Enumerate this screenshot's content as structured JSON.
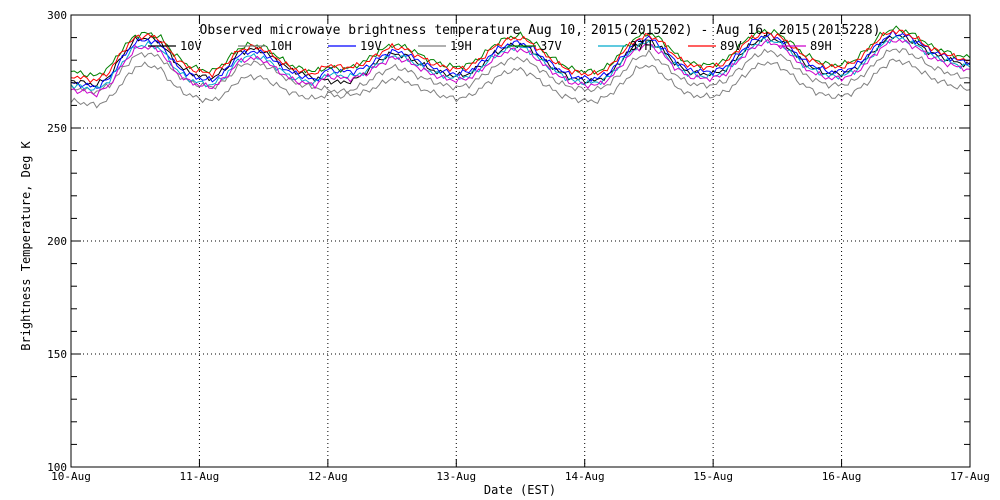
{
  "chart_data": {
    "type": "line",
    "title": "Observed microwave brightness temperature Aug 10, 2015(2015202) - Aug 16, 2015(2015228)",
    "xlabel": "Date (EST)",
    "ylabel": "Brightness Temperature, Deg K",
    "x_ticks": [
      "10-Aug",
      "11-Aug",
      "12-Aug",
      "13-Aug",
      "14-Aug",
      "15-Aug",
      "16-Aug",
      "17-Aug"
    ],
    "xlim": [
      0,
      7
    ],
    "ylim": [
      100,
      300
    ],
    "y_ticks": [
      100,
      150,
      200,
      250,
      300
    ],
    "grid": true,
    "legend_position": "top",
    "x": [
      0.0,
      0.1,
      0.2,
      0.3,
      0.4,
      0.5,
      0.6,
      0.7,
      0.8,
      0.9,
      1.0,
      1.1,
      1.2,
      1.3,
      1.4,
      1.5,
      1.6,
      1.7,
      1.8,
      1.9,
      2.0,
      2.1,
      2.2,
      2.3,
      2.4,
      2.5,
      2.6,
      2.7,
      2.8,
      2.9,
      3.0,
      3.1,
      3.2,
      3.3,
      3.4,
      3.5,
      3.6,
      3.7,
      3.8,
      3.9,
      4.0,
      4.1,
      4.2,
      4.3,
      4.4,
      4.5,
      4.6,
      4.7,
      4.8,
      4.9,
      5.0,
      5.1,
      5.2,
      5.3,
      5.4,
      5.5,
      5.6,
      5.7,
      5.8,
      5.9,
      6.0,
      6.1,
      6.2,
      6.3,
      6.4,
      6.5,
      6.6,
      6.7,
      6.8,
      6.9,
      7.0
    ],
    "series": [
      {
        "name": "10V",
        "color": "#000000",
        "values": [
          271,
          270,
          269,
          273,
          282,
          289,
          290,
          288,
          280,
          275,
          273,
          272,
          276,
          283,
          285,
          284,
          280,
          276,
          274,
          272,
          271,
          270,
          271,
          275,
          280,
          283,
          282,
          279,
          276,
          274,
          273,
          274,
          278,
          283,
          286,
          287,
          284,
          279,
          275,
          272,
          271,
          271,
          274,
          281,
          287,
          289,
          285,
          279,
          275,
          274,
          274,
          276,
          282,
          287,
          290,
          289,
          285,
          279,
          276,
          274,
          274,
          276,
          281,
          287,
          291,
          290,
          287,
          283,
          281,
          279,
          278
        ]
      },
      {
        "name": "10H",
        "color": "#808080",
        "values": [
          268,
          267,
          266,
          269,
          276,
          282,
          283,
          281,
          275,
          271,
          269,
          268,
          271,
          277,
          279,
          278,
          275,
          271,
          269,
          268,
          267,
          266,
          267,
          270,
          274,
          277,
          276,
          273,
          271,
          269,
          268,
          269,
          273,
          277,
          280,
          281,
          278,
          274,
          270,
          268,
          267,
          267,
          270,
          275,
          281,
          283,
          279,
          274,
          270,
          269,
          269,
          271,
          276,
          281,
          284,
          283,
          279,
          274,
          271,
          269,
          269,
          271,
          275,
          281,
          285,
          284,
          281,
          277,
          275,
          273,
          272
        ]
      },
      {
        "name": "19V",
        "color": "#0000ff",
        "values": [
          270,
          269,
          268,
          272,
          281,
          288,
          289,
          287,
          279,
          274,
          272,
          271,
          275,
          282,
          284,
          283,
          279,
          275,
          273,
          271,
          276,
          275,
          275,
          277,
          281,
          284,
          283,
          280,
          277,
          275,
          274,
          275,
          279,
          284,
          287,
          288,
          285,
          280,
          276,
          273,
          272,
          272,
          275,
          282,
          288,
          290,
          286,
          280,
          276,
          275,
          275,
          277,
          283,
          288,
          291,
          290,
          286,
          280,
          277,
          275,
          275,
          277,
          282,
          288,
          292,
          291,
          288,
          284,
          282,
          280,
          279
        ]
      },
      {
        "name": "19H",
        "color": "#808080",
        "values": [
          262,
          261,
          260,
          263,
          270,
          277,
          278,
          276,
          269,
          265,
          263,
          262,
          265,
          271,
          273,
          272,
          269,
          266,
          264,
          263,
          265,
          264,
          265,
          266,
          269,
          272,
          271,
          268,
          266,
          264,
          263,
          264,
          268,
          272,
          275,
          276,
          273,
          269,
          265,
          263,
          262,
          262,
          265,
          270,
          276,
          278,
          274,
          269,
          265,
          264,
          264,
          266,
          271,
          276,
          279,
          278,
          274,
          269,
          266,
          264,
          264,
          266,
          270,
          276,
          280,
          279,
          276,
          272,
          270,
          268,
          267
        ]
      },
      {
        "name": "37V",
        "color": "#008000",
        "values": [
          275,
          274,
          273,
          277,
          285,
          291,
          292,
          290,
          283,
          278,
          276,
          275,
          279,
          285,
          287,
          286,
          282,
          278,
          276,
          275,
          277,
          276,
          277,
          280,
          284,
          287,
          286,
          283,
          280,
          278,
          277,
          278,
          282,
          287,
          290,
          291,
          288,
          283,
          279,
          276,
          275,
          275,
          278,
          285,
          290,
          292,
          289,
          283,
          279,
          278,
          278,
          280,
          286,
          291,
          293,
          292,
          288,
          283,
          280,
          278,
          278,
          280,
          285,
          291,
          294,
          293,
          290,
          286,
          284,
          282,
          281
        ]
      },
      {
        "name": "37H",
        "color": "#00aacc",
        "values": [
          269,
          268,
          267,
          271,
          279,
          286,
          287,
          285,
          277,
          272,
          270,
          269,
          273,
          280,
          282,
          281,
          277,
          273,
          271,
          270,
          274,
          273,
          273,
          275,
          279,
          282,
          281,
          278,
          275,
          273,
          272,
          273,
          277,
          282,
          285,
          286,
          283,
          278,
          274,
          271,
          270,
          270,
          273,
          280,
          286,
          288,
          284,
          278,
          274,
          273,
          273,
          275,
          281,
          286,
          289,
          288,
          284,
          278,
          275,
          273,
          273,
          275,
          280,
          286,
          290,
          289,
          286,
          282,
          280,
          278,
          277
        ]
      },
      {
        "name": "89V",
        "color": "#ff0000",
        "values": [
          273,
          272,
          271,
          275,
          284,
          290,
          291,
          289,
          282,
          277,
          275,
          274,
          278,
          284,
          286,
          285,
          281,
          277,
          275,
          274,
          278,
          277,
          277,
          279,
          283,
          286,
          285,
          282,
          279,
          277,
          276,
          277,
          281,
          286,
          289,
          290,
          287,
          282,
          278,
          275,
          274,
          274,
          277,
          284,
          289,
          291,
          288,
          282,
          278,
          277,
          277,
          279,
          285,
          290,
          292,
          291,
          287,
          282,
          279,
          277,
          277,
          279,
          284,
          290,
          293,
          292,
          289,
          285,
          283,
          281,
          280
        ]
      },
      {
        "name": "89H",
        "color": "#cc00cc",
        "values": [
          267,
          266,
          265,
          269,
          278,
          285,
          286,
          284,
          276,
          271,
          269,
          268,
          272,
          279,
          281,
          280,
          276,
          272,
          270,
          269,
          273,
          272,
          272,
          274,
          278,
          281,
          280,
          277,
          274,
          272,
          271,
          272,
          276,
          281,
          284,
          285,
          282,
          277,
          273,
          270,
          269,
          269,
          272,
          279,
          285,
          287,
          283,
          277,
          273,
          272,
          272,
          274,
          280,
          285,
          288,
          287,
          283,
          277,
          274,
          272,
          272,
          274,
          279,
          285,
          289,
          288,
          285,
          281,
          279,
          277,
          276
        ]
      }
    ]
  }
}
